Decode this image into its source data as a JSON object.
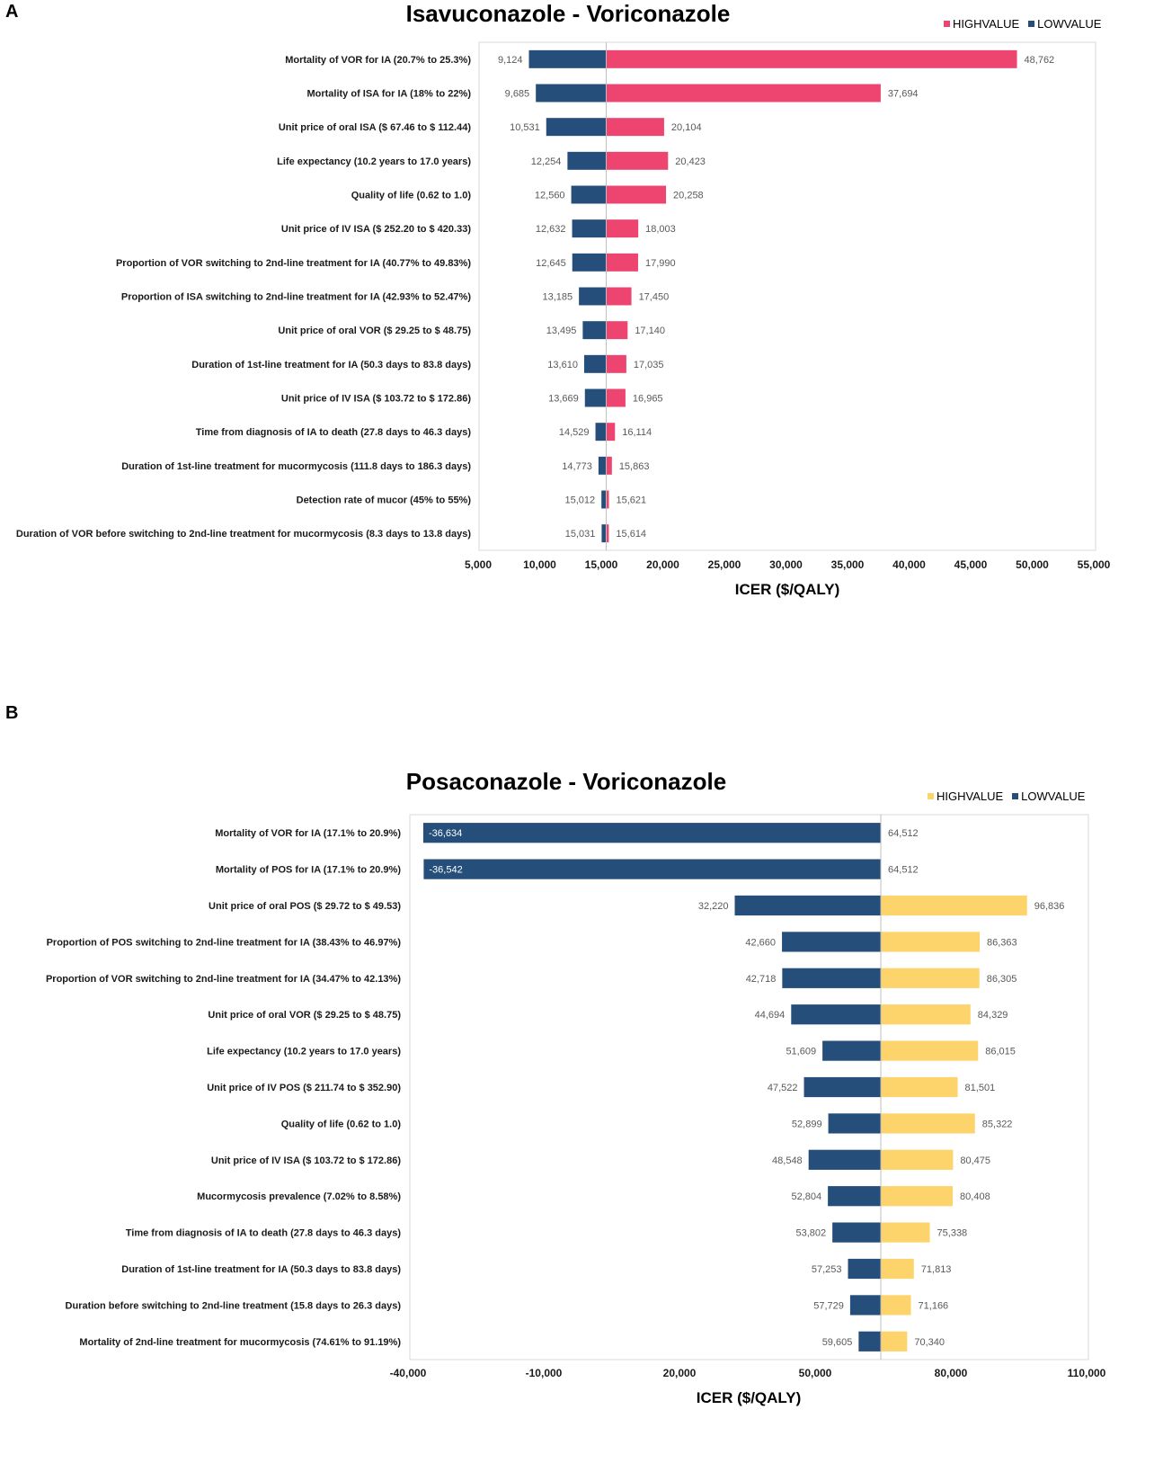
{
  "chart_data": [
    {
      "panel": "A",
      "type": "bar",
      "subtype": "tornado",
      "title": "Isavuconazole - Voriconazole",
      "xlabel": "ICER ($/QALY)",
      "xlim": [
        5000,
        55000
      ],
      "base": 15400,
      "ticks": [
        5000,
        10000,
        15000,
        20000,
        25000,
        30000,
        35000,
        40000,
        45000,
        50000,
        55000
      ],
      "tick_labels": [
        "5,000",
        "10,000",
        "15,000",
        "20,000",
        "25,000",
        "30,000",
        "35,000",
        "40,000",
        "45,000",
        "50,000",
        "55,000"
      ],
      "legend": [
        {
          "name": "HIGHVALUE",
          "color": "#ee4570"
        },
        {
          "name": "LOWVALUE",
          "color": "#254f7a"
        }
      ],
      "series_colors": {
        "low": "#254f7a",
        "high": "#ee4570"
      },
      "categories": [
        "Mortality of VOR for IA (20.7% to 25.3%)",
        "Mortality of ISA for IA (18% to 22%)",
        "Unit price of oral ISA ($ 67.46 to $ 112.44)",
        "Life expectancy (10.2 years to 17.0 years)",
        "Quality of life (0.62 to 1.0)",
        "Unit price of IV ISA ($ 252.20 to $ 420.33)",
        "Proportion of VOR switching to 2nd-line  treatment for IA (40.77% to 49.83%)",
        "Proportion of ISA switching to 2nd-line  treatment for IA (42.93% to 52.47%)",
        "Unit price of oral VOR ($ 29.25 to $ 48.75)",
        "Duration of 1st-line treatment for IA (50.3 days to 83.8 days)",
        "Unit price of IV ISA ($ 103.72 to $ 172.86)",
        "Time from diagnosis of IA to death (27.8 days to 46.3 days)",
        "Duration of 1st-line treatment for mucormycosis (111.8 days to 186.3 days)",
        "Detection rate of mucor (45% to 55%)",
        "Duration of VOR before switching to 2nd-line treatment for mucormycosis (8.3 days to 13.8 days)"
      ],
      "low_values": [
        9124,
        9685,
        10531,
        12254,
        12560,
        12632,
        12645,
        13185,
        13495,
        13610,
        13669,
        14529,
        14773,
        15012,
        15031
      ],
      "high_values": [
        48762,
        37694,
        20104,
        20423,
        20258,
        18003,
        17990,
        17450,
        17140,
        17035,
        16965,
        16114,
        15863,
        15621,
        15614
      ],
      "low_labels": [
        "9,124",
        "9,685",
        "10,531",
        "12,254",
        "12,560",
        "12,632",
        "12,645",
        "13,185",
        "13,495",
        "13,610",
        "13,669",
        "14,529",
        "14,773",
        "15,012",
        "15,031"
      ],
      "high_labels": [
        "48,762",
        "37,694",
        "20,104",
        "20,423",
        "20,258",
        "18,003",
        "17,990",
        "17,450",
        "17,140",
        "17,035",
        "16,965",
        "16,114",
        "15,863",
        "15,621",
        "15,614"
      ]
    },
    {
      "panel": "B",
      "type": "bar",
      "subtype": "tornado",
      "title": "Posaconazole - Voriconazole",
      "xlabel": "ICER ($/QALY)",
      "xlim": [
        -40000,
        110000
      ],
      "base": 64512,
      "ticks": [
        -40000,
        -10000,
        20000,
        50000,
        80000,
        110000
      ],
      "tick_labels": [
        "-40,000",
        "-10,000",
        "20,000",
        "50,000",
        "80,000",
        "110,000"
      ],
      "legend": [
        {
          "name": "HIGHVALUE",
          "color": "#fdd36b"
        },
        {
          "name": "LOWVALUE",
          "color": "#254f7a"
        }
      ],
      "series_colors": {
        "low": "#254f7a",
        "high": "#fdd36b"
      },
      "categories": [
        "Mortality of VOR for IA (17.1% to 20.9%)",
        "Mortality of POS for IA (17.1% to 20.9%)",
        "Unit price of oral POS ($ 29.72 to $ 49.53)",
        "Proportion of POS switching to 2nd-line  treatment for IA (38.43% to 46.97%)",
        "Proportion of VOR switching to 2nd-line  treatment for IA (34.47% to 42.13%)",
        "Unit price of oral VOR ($ 29.25 to $ 48.75)",
        "Life expectancy (10.2 years to 17.0 years)",
        "Unit price of IV POS ($ 211.74 to $ 352.90)",
        "Quality of life (0.62 to 1.0)",
        "Unit price of IV ISA ($ 103.72 to $ 172.86)",
        "Mucormycosis prevalence (7.02% to 8.58%)",
        "Time from diagnosis of IA to death (27.8 days to 46.3 days)",
        "Duration of 1st-line treatment for IA (50.3 days to 83.8 days)",
        "Duration before switching to 2nd-line treatment (15.8 days to 26.3 days)",
        "Mortality of 2nd-line treatment for mucormycosis (74.61% to 91.19%)"
      ],
      "low_values": [
        -36634,
        -36542,
        32220,
        42660,
        42718,
        44694,
        51609,
        47522,
        52899,
        48548,
        52804,
        53802,
        57253,
        57729,
        59605
      ],
      "high_values": [
        64512,
        64512,
        96836,
        86363,
        86305,
        84329,
        86015,
        81501,
        85322,
        80475,
        80408,
        75338,
        71813,
        71166,
        70340
      ],
      "low_labels": [
        "-36,634",
        "-36,542",
        "32,220",
        "42,660",
        "42,718",
        "44,694",
        "51,609",
        "47,522",
        "52,899",
        "48,548",
        "52,804",
        "53,802",
        "57,253",
        "57,729",
        "59,605"
      ],
      "high_labels": [
        "64,512",
        "64,512",
        "96,836",
        "86,363",
        "86,305",
        "84,329",
        "86,015",
        "81,501",
        "85,322",
        "80,475",
        "80,408",
        "75,338",
        "71,813",
        "71,166",
        "70,340"
      ]
    }
  ]
}
